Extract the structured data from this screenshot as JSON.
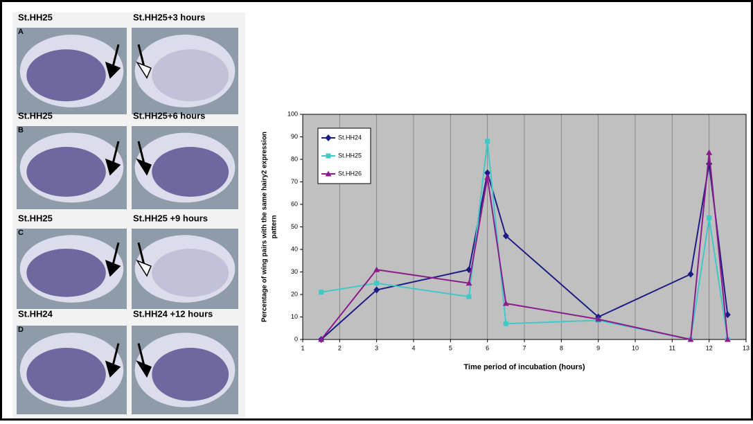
{
  "panels": [
    {
      "letter": "A",
      "left": "St.HH25",
      "right": "St.HH25+3 hours"
    },
    {
      "letter": "B",
      "left": "St.HH25",
      "right": "St.HH25+6 hours"
    },
    {
      "letter": "C",
      "left": "St.HH25",
      "right": "St.HH25 +9 hours"
    },
    {
      "letter": "D",
      "left": "St.HH24",
      "right": "St.HH24 +12 hours"
    }
  ],
  "chart_data": {
    "type": "line",
    "x_label": "Time period of incubation (hours)",
    "y_label": [
      "Percentage of wing pairs with the same hairy2 expression",
      "pattern"
    ],
    "x": [
      1.5,
      3,
      5.5,
      6,
      6.5,
      9,
      11.5,
      12,
      12.5
    ],
    "series": [
      {
        "name": "St.HH24",
        "color": "#1c1c84",
        "marker": "diamond",
        "values": [
          0,
          22,
          31,
          74,
          46,
          10,
          29,
          78,
          11
        ]
      },
      {
        "name": "St.HH25",
        "color": "#40c8c8",
        "marker": "square",
        "values": [
          21,
          25,
          19,
          88,
          7,
          8.5,
          0,
          54,
          0
        ]
      },
      {
        "name": "St.HH26",
        "color": "#8b1c8b",
        "marker": "triangle",
        "values": [
          0,
          31,
          25,
          72,
          16,
          9,
          0,
          83,
          0
        ]
      }
    ],
    "xlim": [
      1,
      13
    ],
    "xticks": [
      1,
      2,
      3,
      4,
      5,
      6,
      7,
      8,
      9,
      10,
      11,
      12,
      13
    ],
    "ylim": [
      0,
      100
    ],
    "yticks": [
      0,
      10,
      20,
      30,
      40,
      50,
      60,
      70,
      80,
      90,
      100
    ],
    "grid": "x",
    "legend": "top-left"
  }
}
